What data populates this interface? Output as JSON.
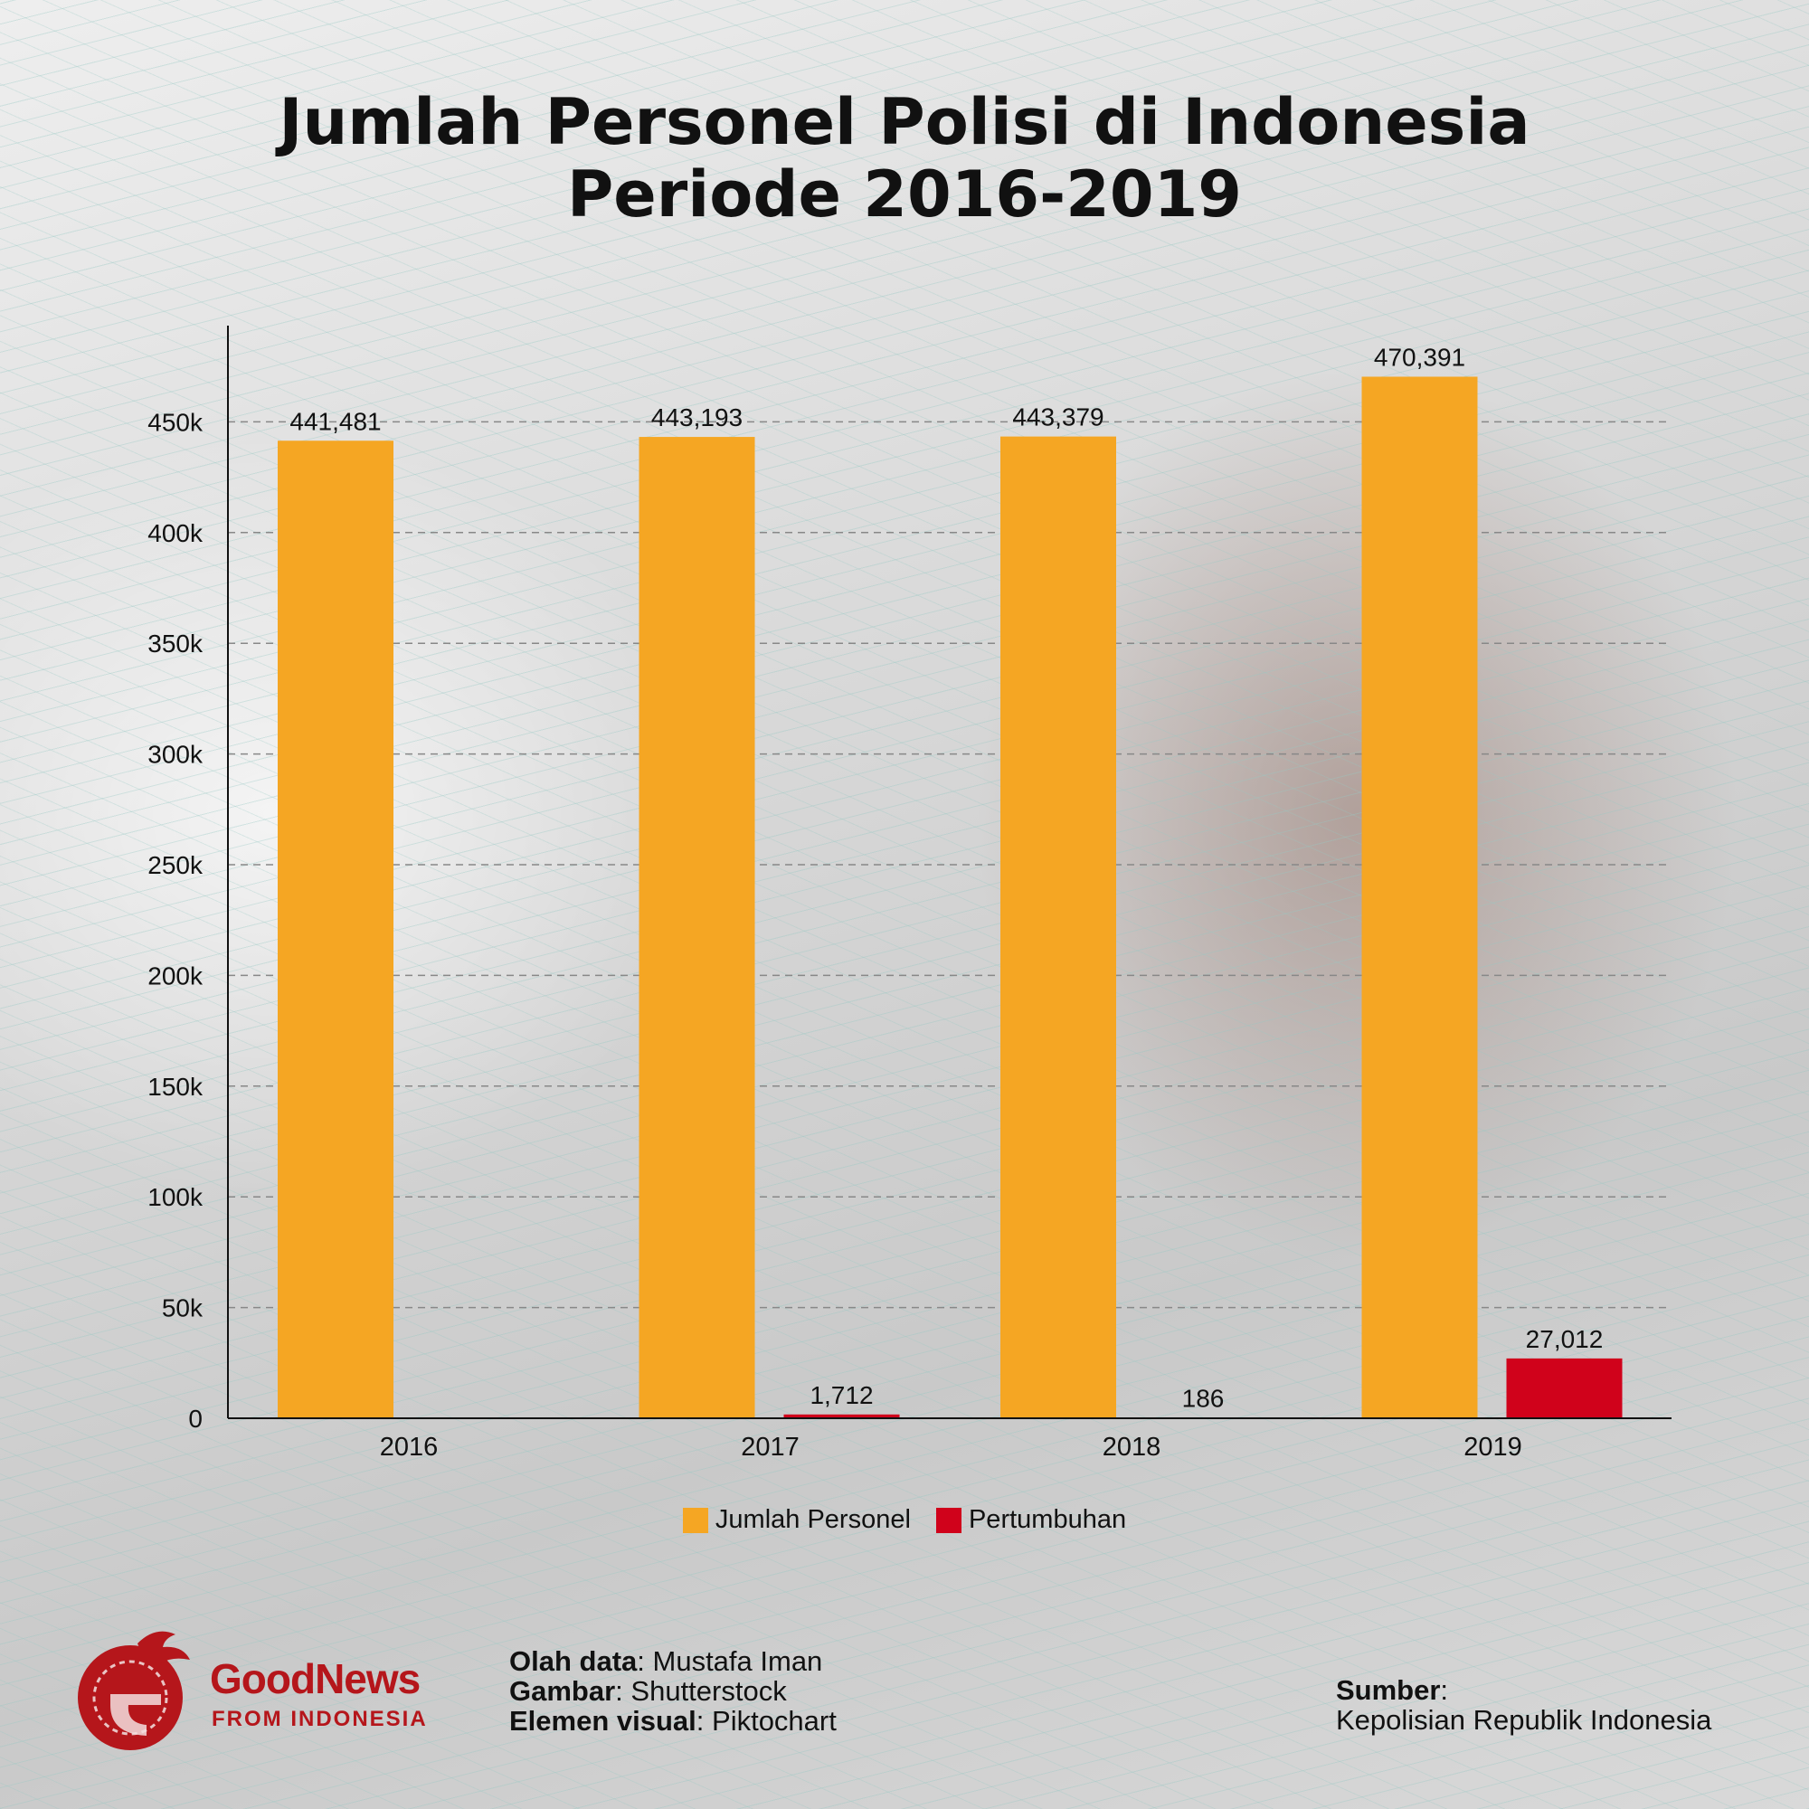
{
  "title_line1": "Jumlah Personel Polisi di Indonesia",
  "title_line2": "Periode 2016-2019",
  "chart_data": {
    "type": "bar",
    "categories": [
      "2016",
      "2017",
      "2018",
      "2019"
    ],
    "series": [
      {
        "name": "Jumlah Personel",
        "color": "#f5a623",
        "values": [
          441481,
          443193,
          443379,
          470391
        ],
        "labels": [
          "441,481",
          "443,193",
          "443,379",
          "470,391"
        ]
      },
      {
        "name": "Pertumbuhan",
        "color": "#d0021b",
        "values": [
          null,
          1712,
          186,
          27012
        ],
        "labels": [
          null,
          "1,712",
          "186",
          "27,012"
        ]
      }
    ],
    "yticks": [
      0,
      50000,
      100000,
      150000,
      200000,
      250000,
      300000,
      350000,
      400000,
      450000
    ],
    "ytick_labels": [
      "0",
      "50k",
      "100k",
      "150k",
      "200k",
      "250k",
      "300k",
      "350k",
      "400k",
      "450k"
    ],
    "ylim": [
      0,
      450000
    ],
    "grid": true,
    "legend": "bottom-center"
  },
  "logo": {
    "name": "GoodNews",
    "tagline": "FROM INDONESIA",
    "color": "#b5161b"
  },
  "credits": {
    "data_label": "Olah data",
    "data_value": "Mustafa Iman",
    "image_label": "Gambar",
    "image_value": "Shutterstock",
    "visual_label": "Elemen visual",
    "visual_value": "Piktochart"
  },
  "source": {
    "label": "Sumber",
    "value": "Kepolisian Republik Indonesia"
  }
}
